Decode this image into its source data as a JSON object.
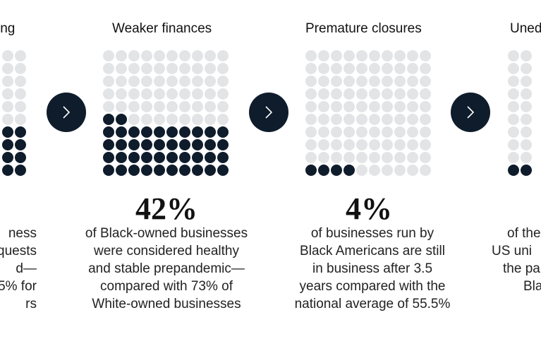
{
  "panels": [
    {
      "heading": "ing",
      "dot_columns_visible": 2,
      "filled_dots": 8,
      "description": [
        "ness",
        "quests",
        "d—",
        "5% for",
        "rs"
      ]
    },
    {
      "heading": "Weaker finances",
      "stat": "42%",
      "filled_dots": 42,
      "description": [
        "of Black-owned businesses",
        "were considered healthy",
        "and stable prepandemic—",
        "compared with 73% of",
        "White-owned businesses"
      ]
    },
    {
      "heading": "Premature closures",
      "stat": "4%",
      "filled_dots": 4,
      "description": [
        "of businesses run by",
        "Black Americans are still",
        "in business after 3.5",
        "years compared with the",
        "national average of 55.5%"
      ]
    },
    {
      "heading": "Uned",
      "dot_columns_visible": 2,
      "filled_dots": 2,
      "description": [
        "of the",
        "US uni",
        "the pa",
        "Bla"
      ]
    }
  ],
  "colors": {
    "filled": "#0f1c2b",
    "empty": "#e3e4e6",
    "arrow_bg": "#0f1c2b"
  },
  "icons": [
    "chevron-right-icon",
    "chevron-right-icon",
    "chevron-right-icon"
  ]
}
